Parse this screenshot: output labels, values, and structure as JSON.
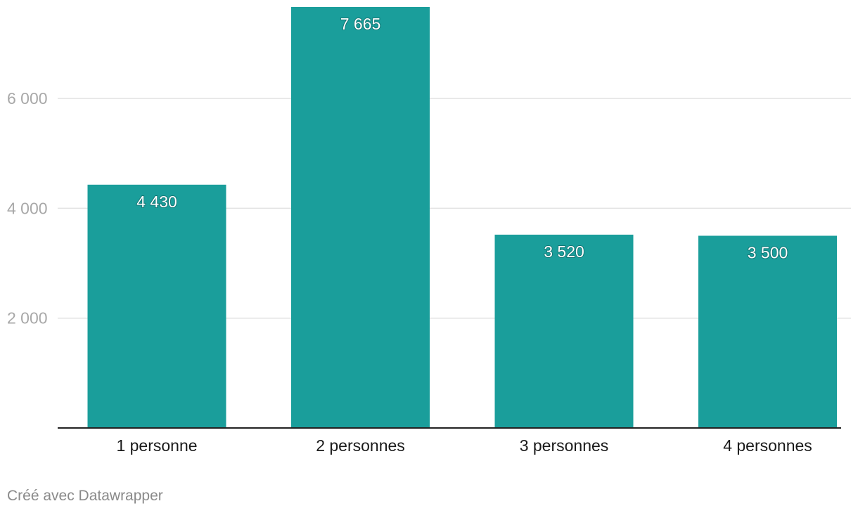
{
  "chart_data": {
    "type": "bar",
    "categories": [
      "1 personne",
      "2 personnes",
      "3 personnes",
      "4 personnes"
    ],
    "values": [
      4430,
      7665,
      3520,
      3500
    ],
    "value_labels": [
      "4 430",
      "7 665",
      "3 520",
      "3 500"
    ],
    "yticks": [
      2000,
      4000,
      6000
    ],
    "ytick_labels": [
      "2 000",
      "4 000",
      "6 000"
    ],
    "ylim": [
      0,
      7665
    ],
    "grid": true,
    "bar_color": "#1a9e9b",
    "label_color": "#ffffff"
  },
  "footer": {
    "credit": "Créé avec Datawrapper"
  }
}
